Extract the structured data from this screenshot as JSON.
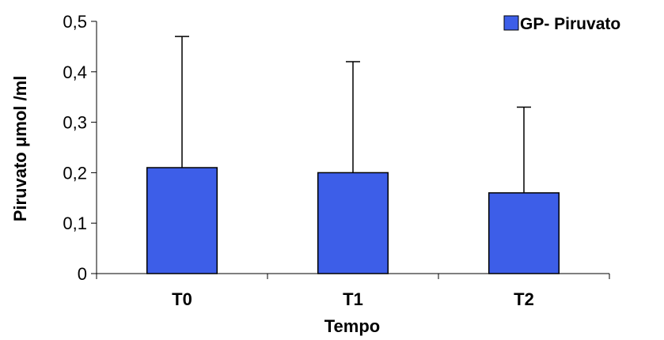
{
  "chart_data": {
    "type": "bar",
    "categories": [
      "T0",
      "T1",
      "T2"
    ],
    "series": [
      {
        "name": "GP- Piruvato",
        "values": [
          0.21,
          0.2,
          0.16
        ],
        "error_upper": [
          0.47,
          0.42,
          0.33
        ],
        "color": "#3d5ee8"
      }
    ],
    "xlabel": "Tempo",
    "ylabel": "Piruvato  μmol /ml",
    "ylim": [
      0,
      0.5
    ],
    "yticks": [
      "0",
      "0,1",
      "0,2",
      "0,3",
      "0,4",
      "0,5"
    ],
    "grid": false,
    "legend_position": "top-right"
  }
}
